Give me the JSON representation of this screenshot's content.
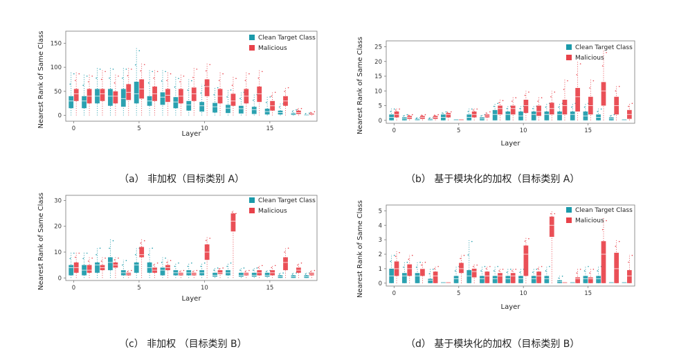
{
  "colors": {
    "clean": "#1b9aaa",
    "malicious": "#e8424a",
    "axis": "#777777"
  },
  "chart_data": [
    {
      "id": "a",
      "type": "box",
      "caption": "（a） 非加权（目标类别 A）",
      "xlabel": "Layer",
      "ylabel": "Nearest Rank of Same Class",
      "ylim": [
        -12,
        175
      ],
      "yticks": [
        0,
        50,
        100,
        150
      ],
      "xticks": [
        0,
        5,
        10,
        15
      ],
      "layers": 19,
      "legend": [
        "Clean Target Class",
        "Malicious"
      ],
      "legend_position": "top-right",
      "series": [
        {
          "name": "Clean Target Class",
          "medians": [
            30,
            30,
            40,
            40,
            35,
            45,
            30,
            38,
            28,
            22,
            20,
            18,
            15,
            14,
            12,
            8,
            6,
            3,
            1
          ],
          "q1": [
            15,
            15,
            25,
            20,
            18,
            25,
            20,
            22,
            15,
            10,
            8,
            6,
            5,
            4,
            3,
            2,
            2,
            1,
            0
          ],
          "q3": [
            40,
            40,
            55,
            55,
            55,
            70,
            40,
            48,
            38,
            30,
            28,
            26,
            22,
            20,
            18,
            14,
            10,
            5,
            2
          ],
          "whisker_low": [
            0,
            0,
            0,
            0,
            0,
            0,
            0,
            0,
            0,
            0,
            0,
            0,
            0,
            0,
            0,
            0,
            0,
            0,
            0
          ],
          "whisker_high": [
            90,
            85,
            100,
            100,
            100,
            140,
            95,
            95,
            80,
            75,
            65,
            60,
            55,
            50,
            45,
            40,
            25,
            12,
            5
          ]
        },
        {
          "name": "Malicious",
          "medians": [
            45,
            40,
            45,
            40,
            48,
            55,
            45,
            42,
            40,
            45,
            60,
            40,
            30,
            40,
            45,
            20,
            30,
            6,
            2
          ],
          "q1": [
            30,
            25,
            30,
            25,
            32,
            35,
            30,
            28,
            25,
            30,
            40,
            25,
            20,
            25,
            28,
            10,
            20,
            3,
            1
          ],
          "q3": [
            55,
            55,
            55,
            50,
            65,
            75,
            60,
            55,
            55,
            58,
            75,
            55,
            45,
            55,
            60,
            30,
            40,
            10,
            4
          ],
          "whisker_low": [
            0,
            0,
            0,
            0,
            0,
            0,
            0,
            0,
            0,
            0,
            0,
            0,
            0,
            0,
            0,
            0,
            0,
            0,
            0
          ],
          "whisker_high": [
            90,
            85,
            95,
            85,
            100,
            110,
            95,
            90,
            85,
            100,
            110,
            90,
            80,
            90,
            95,
            50,
            60,
            15,
            8
          ]
        }
      ]
    },
    {
      "id": "b",
      "type": "box",
      "caption": "（b） 基于模块化的加权（目标类别 A）",
      "xlabel": "Layer",
      "ylabel": "Nearest Rank of Same Class",
      "ylim": [
        -1,
        27
      ],
      "yticks": [
        0,
        5,
        10,
        15,
        20,
        25
      ],
      "xticks": [
        0,
        5,
        10,
        15
      ],
      "layers": 19,
      "legend": [
        "Clean Target Class",
        "Malicious"
      ],
      "legend_position": "top-right",
      "series": [
        {
          "name": "Clean Target Class",
          "medians": [
            1,
            0.5,
            0.2,
            0.2,
            1,
            0,
            1,
            0.5,
            2,
            2,
            1.5,
            2,
            2,
            2,
            2,
            1.5,
            1,
            0.5,
            0
          ],
          "q1": [
            0,
            0,
            0,
            0,
            0,
            0,
            0,
            0,
            0,
            0,
            0,
            0,
            0,
            0,
            0,
            0,
            0,
            0,
            0
          ],
          "q3": [
            2,
            1,
            0.5,
            0.5,
            2,
            0,
            2,
            1,
            3.5,
            3,
            3,
            3,
            3,
            3,
            3,
            3,
            2,
            1,
            0
          ],
          "whisker_low": [
            0,
            0,
            0,
            0,
            0,
            0,
            0,
            0,
            0,
            0,
            0,
            0,
            0,
            0,
            0,
            0,
            0,
            0,
            0
          ],
          "whisker_high": [
            4,
            2,
            1,
            1,
            3,
            0,
            4,
            2,
            6,
            5,
            5,
            5,
            6,
            6,
            6,
            6,
            4,
            2,
            0
          ]
        },
        {
          "name": "Malicious",
          "medians": [
            2,
            1,
            1,
            1,
            2,
            0,
            2,
            1.5,
            4,
            4,
            5,
            3,
            4,
            5,
            8,
            5,
            10,
            5,
            2
          ],
          "q1": [
            1,
            0.5,
            0.5,
            0.5,
            1,
            0,
            1,
            1,
            2,
            2,
            2.5,
            1.5,
            2,
            2,
            3,
            2,
            5,
            2,
            0.5
          ],
          "q3": [
            3,
            1.5,
            1.5,
            1.5,
            2.5,
            0,
            3,
            2,
            5,
            5,
            7,
            5,
            6,
            7,
            11,
            8,
            13,
            8,
            3.5
          ],
          "whisker_low": [
            0,
            0,
            0,
            0,
            0,
            0,
            0,
            0,
            0,
            0,
            0,
            0,
            0,
            0,
            0,
            0,
            0,
            0,
            0
          ],
          "whisker_high": [
            4,
            2,
            2,
            2,
            3,
            0,
            4,
            3,
            7,
            8,
            10,
            8,
            10,
            14,
            20,
            14,
            24,
            12,
            6
          ]
        }
      ]
    },
    {
      "id": "c",
      "type": "box",
      "caption": "（c） 非加权 （目标类别 B）",
      "xlabel": "Layer",
      "ylabel": "Nearest Rank of Same Class",
      "ylim": [
        -1,
        32
      ],
      "yticks": [
        0,
        10,
        20,
        30
      ],
      "xticks": [
        0,
        5,
        10,
        15
      ],
      "layers": 19,
      "legend": [
        "Clean Target Class",
        "Malicious"
      ],
      "legend_position": "top-right",
      "series": [
        {
          "name": "Clean Target Class",
          "medians": [
            4,
            3,
            5,
            6,
            2,
            5,
            4,
            3,
            2,
            2,
            2,
            1,
            2,
            1,
            1,
            1,
            0.5,
            0.5,
            0.5
          ],
          "q1": [
            1,
            1,
            2,
            3,
            1,
            2,
            2,
            1,
            1,
            1,
            1,
            0.5,
            1,
            0.5,
            0.5,
            0.5,
            0,
            0,
            0
          ],
          "q3": [
            5,
            5,
            6,
            8,
            3,
            6,
            6,
            4,
            3,
            3,
            3,
            2,
            3,
            2,
            2,
            2,
            1,
            1,
            1
          ],
          "whisker_low": [
            0,
            0,
            0,
            0,
            0,
            0,
            0,
            0,
            0,
            0,
            0,
            0,
            0,
            0,
            0,
            0,
            0,
            0,
            0
          ],
          "whisker_high": [
            10,
            10,
            12,
            15,
            7,
            12,
            12,
            8,
            6,
            6,
            6,
            4,
            6,
            4,
            4,
            3,
            2,
            2,
            2
          ]
        },
        {
          "name": "Malicious",
          "medians": [
            4,
            3,
            4,
            5,
            1.5,
            9,
            3,
            4,
            1.5,
            1.5,
            10,
            2,
            22,
            1.5,
            2,
            2,
            6,
            3,
            1.5
          ],
          "q1": [
            2,
            2,
            3,
            4,
            1,
            8,
            2,
            3,
            1,
            1,
            7,
            1.5,
            18,
            1,
            1,
            1,
            3,
            2,
            1
          ],
          "q3": [
            6,
            5,
            5,
            6,
            2,
            12,
            4,
            5,
            2,
            2,
            13,
            3,
            25,
            2,
            3,
            3,
            8,
            4,
            2
          ],
          "whisker_low": [
            0,
            0,
            0,
            0,
            0,
            0,
            0,
            0,
            0,
            0,
            0,
            0,
            0,
            0,
            0,
            0,
            0,
            0,
            0
          ],
          "whisker_high": [
            10,
            8,
            8,
            8,
            3,
            15,
            6,
            7,
            3,
            3,
            16,
            4,
            26,
            3,
            5,
            5,
            12,
            6,
            3
          ]
        }
      ]
    },
    {
      "id": "d",
      "type": "box",
      "caption": "（d） 基于模块化的加权（目标类别 B）",
      "xlabel": "Layer",
      "ylabel": "Nearest Rank of Same Class",
      "ylim": [
        -0.2,
        5.4
      ],
      "yticks": [
        0,
        1,
        2,
        3,
        4,
        5
      ],
      "xticks": [
        0,
        5,
        10,
        15
      ],
      "layers": 19,
      "legend": [
        "Clean Target Class",
        "Malicious"
      ],
      "legend_position": "top-right",
      "series": [
        {
          "name": "Clean Target Class",
          "medians": [
            0.5,
            0.5,
            0.5,
            0.2,
            0,
            0.3,
            0.5,
            0.3,
            0.3,
            0.3,
            0.3,
            0.3,
            0.3,
            0.1,
            0,
            0.3,
            0.3,
            0,
            0
          ],
          "q1": [
            0,
            0,
            0,
            0,
            0,
            0,
            0,
            0,
            0,
            0,
            0,
            0,
            0,
            0,
            0,
            0,
            0,
            0,
            0
          ],
          "q3": [
            1,
            0.7,
            0.7,
            0.3,
            0,
            0.5,
            0.9,
            0.5,
            0.5,
            0.5,
            0.5,
            0.5,
            0.5,
            0.2,
            0,
            0.5,
            0.5,
            0,
            0
          ],
          "whisker_low": [
            0,
            0,
            0,
            0,
            0,
            0,
            0,
            0,
            0,
            0,
            0,
            0,
            0,
            0,
            0,
            0,
            0,
            0,
            0
          ],
          "whisker_high": [
            2,
            1.5,
            1.5,
            1,
            0,
            1.2,
            3,
            1.2,
            1.2,
            1,
            1,
            1,
            1.2,
            0.5,
            0,
            1.2,
            1.2,
            0,
            0
          ]
        },
        {
          "name": "Malicious",
          "medians": [
            1,
            1,
            1,
            0.5,
            0,
            1,
            0.8,
            0.5,
            0.5,
            0.5,
            2,
            0.5,
            4,
            0,
            0.3,
            0.3,
            2,
            1,
            0.5
          ],
          "q1": [
            0.5,
            0.5,
            0.5,
            0,
            0,
            0.7,
            0.4,
            0,
            0,
            0,
            0.5,
            0,
            3.2,
            0,
            0,
            0,
            0,
            0,
            0
          ],
          "q3": [
            1.5,
            1.3,
            1,
            0.8,
            0,
            1.4,
            1,
            0.8,
            0.7,
            0.7,
            2.6,
            0.8,
            4.6,
            0,
            0.4,
            0.4,
            2.9,
            2.1,
            0.9
          ],
          "whisker_low": [
            0,
            0,
            0,
            0,
            0,
            0,
            0,
            0,
            0,
            0,
            0,
            0,
            0,
            0,
            0,
            0,
            0,
            0,
            0
          ],
          "whisker_high": [
            2.2,
            2,
            1.5,
            1.2,
            0,
            2,
            1.3,
            1.2,
            1,
            1,
            3.2,
            1.2,
            5,
            0,
            1,
            1,
            4.5,
            3,
            2
          ]
        }
      ]
    }
  ]
}
